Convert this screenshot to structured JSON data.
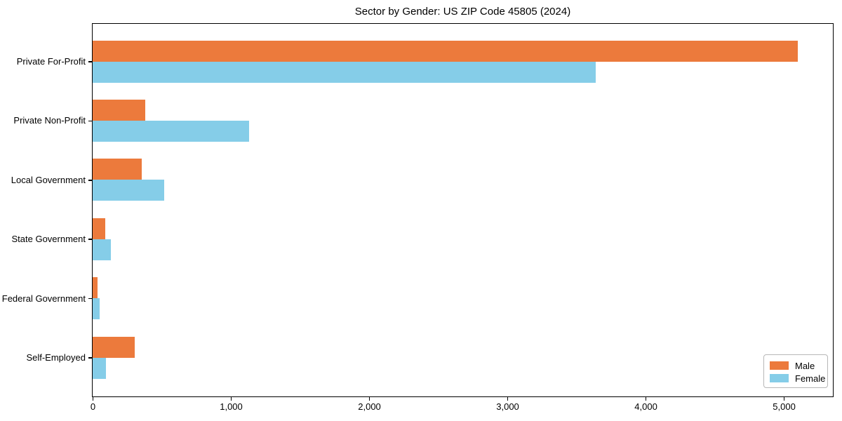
{
  "chart_data": {
    "type": "bar",
    "orientation": "horizontal",
    "title": "Sector by Gender: US ZIP Code 45805 (2024)",
    "categories": [
      "Private For-Profit",
      "Private Non-Profit",
      "Local Government",
      "State Government",
      "Federal Government",
      "Self-Employed"
    ],
    "series": [
      {
        "name": "Male",
        "color": "#EC7A3C",
        "values": [
          5100,
          380,
          355,
          90,
          35,
          305
        ]
      },
      {
        "name": "Female",
        "color": "#85CDE8",
        "values": [
          3640,
          1130,
          520,
          130,
          50,
          95
        ]
      }
    ],
    "xlabel": "",
    "ylabel": "",
    "xlim": [
      0,
      5355
    ],
    "xticks": [
      0,
      1000,
      2000,
      3000,
      4000,
      5000
    ],
    "xtick_labels": [
      "0",
      "1,000",
      "2,000",
      "3,000",
      "4,000",
      "5,000"
    ],
    "legend_position": "lower right",
    "grid": false
  }
}
